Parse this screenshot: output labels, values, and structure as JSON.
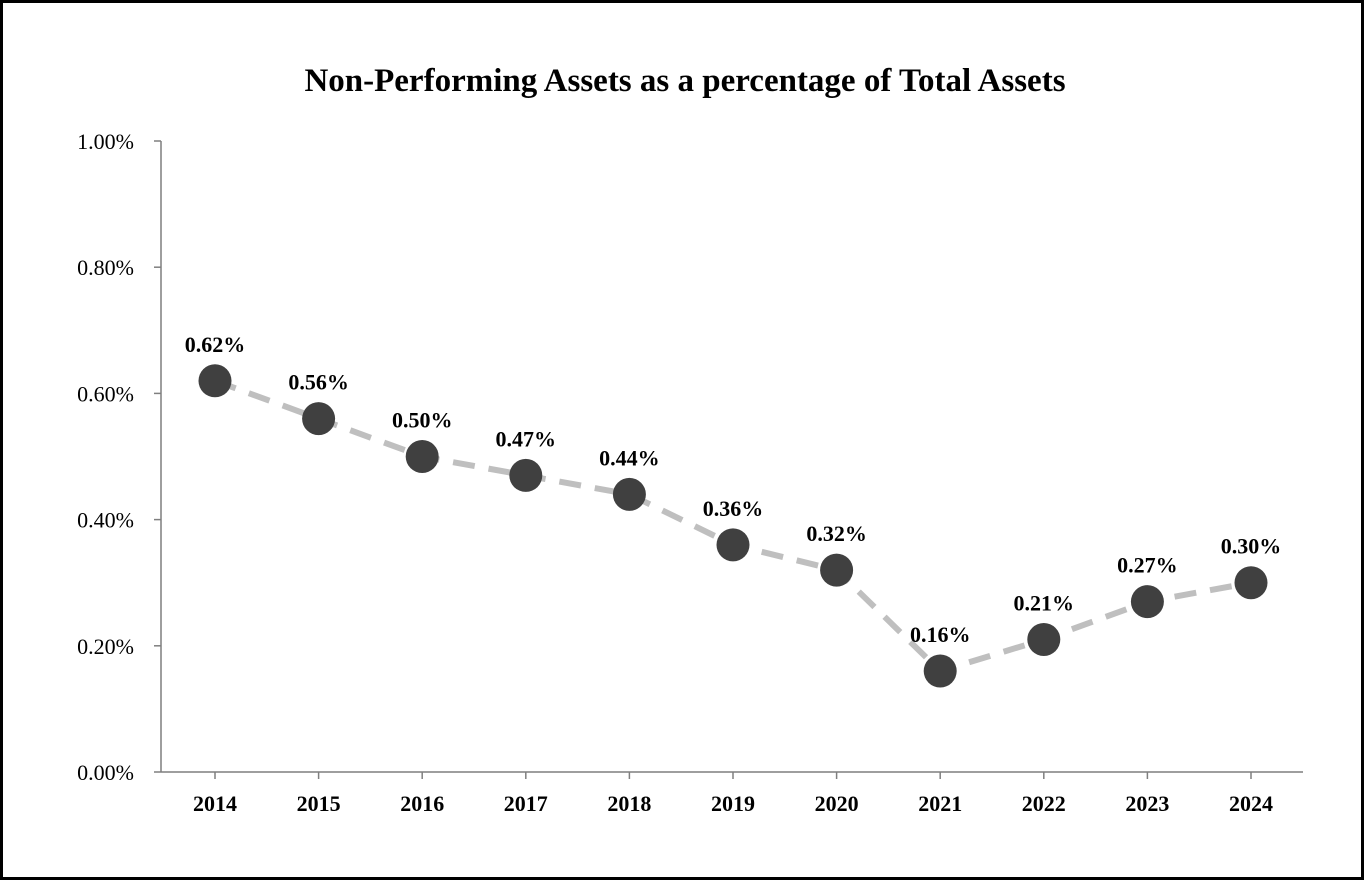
{
  "chart_data": {
    "type": "line",
    "title": "Non-Performing Assets as a percentage of Total Assets",
    "xlabel": "",
    "ylabel": "",
    "categories": [
      "2014",
      "2015",
      "2016",
      "2017",
      "2018",
      "2019",
      "2020",
      "2021",
      "2022",
      "2023",
      "2024"
    ],
    "series": [
      {
        "values": [
          0.62,
          0.56,
          0.5,
          0.47,
          0.44,
          0.36,
          0.32,
          0.16,
          0.21,
          0.27,
          0.3
        ],
        "data_labels": [
          "0.62%",
          "0.56%",
          "0.50%",
          "0.47%",
          "0.44%",
          "0.36%",
          "0.32%",
          "0.16%",
          "0.21%",
          "0.27%",
          "0.30%"
        ]
      }
    ],
    "ylim": [
      0,
      1.0
    ],
    "yticks": [
      0.0,
      0.2,
      0.4,
      0.6,
      0.8,
      1.0
    ],
    "ytick_labels": [
      "0.00%",
      "0.20%",
      "0.40%",
      "0.60%",
      "0.80%",
      "1.00%"
    ],
    "grid": false,
    "legend": "none",
    "colors": {
      "line": "#bfbfbf",
      "marker": "#404040",
      "axis": "#7f7f7f",
      "border": "#000000"
    }
  }
}
